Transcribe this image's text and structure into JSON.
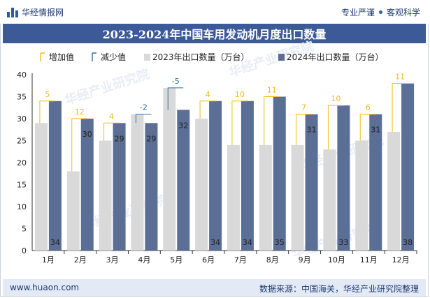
{
  "header": {
    "brand": "华经情报网",
    "tag1": "专业严谨",
    "tag2": "客观科学",
    "title": "2023-2024年中国车用发动机月度出口数量"
  },
  "footer": {
    "url": "www.huaon.com",
    "source": "数据来源：中国海关，华经产业研究院整理"
  },
  "watermark": "华经产业研究院",
  "colors": {
    "s2023": "#d9d9d9",
    "s2024": "#5b6e95",
    "increase": "#f0bc14",
    "decrease": "#2f6f9f",
    "title_bg": "#3d5a98"
  },
  "chart_data": {
    "type": "bar",
    "categories": [
      "1月",
      "2月",
      "3月",
      "4月",
      "5月",
      "6月",
      "7月",
      "8月",
      "9月",
      "10月",
      "11月",
      "12月"
    ],
    "series": [
      {
        "name": "2023年出口数量（万台）",
        "values": [
          29,
          18,
          25,
          31,
          37,
          30,
          24,
          24,
          24,
          23,
          25,
          27
        ]
      },
      {
        "name": "2024年出口数量（万台）",
        "values": [
          34,
          30,
          29,
          29,
          32,
          34,
          34,
          35,
          31,
          33,
          31,
          38
        ]
      }
    ],
    "change": [
      5,
      12,
      4,
      -2,
      -5,
      4,
      10,
      11,
      7,
      10,
      6,
      11
    ],
    "legend": [
      "增加值",
      "减少值",
      "2023年出口数量（万台）",
      "2024年出口数量（万台）"
    ],
    "ylim": [
      0,
      40
    ],
    "yticks": [
      0,
      5,
      10,
      15,
      20,
      25,
      30,
      35,
      40
    ],
    "legend_position": "top",
    "grid": false
  }
}
